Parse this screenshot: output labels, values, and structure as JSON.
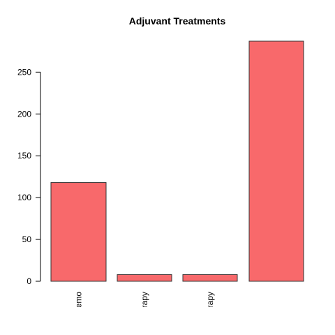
{
  "chart_data": {
    "type": "bar",
    "title": "Adjuvant Treatments",
    "categories": [
      "platinum chemo",
      "radiotherapy",
      "radiotherapy",
      ""
    ],
    "values": [
      118,
      8,
      8,
      287
    ],
    "ylim": [
      0,
      287
    ],
    "yticks": [
      0,
      50,
      100,
      150,
      200,
      250
    ],
    "bar_color": "#F8696B",
    "grid": false
  }
}
